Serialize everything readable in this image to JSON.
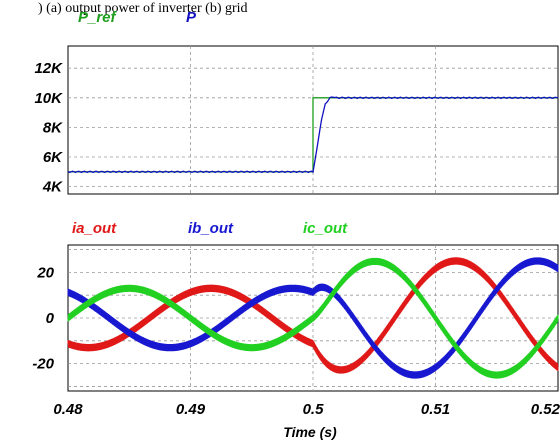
{
  "header_fragment": ") (a) output power of inverter (b) grid",
  "chart_data": [
    {
      "type": "line",
      "title": "",
      "xlabel": "",
      "ylabel": "",
      "xlim": [
        0.48,
        0.52
      ],
      "ylim": [
        3500,
        13500
      ],
      "y_ticks": [
        4000,
        6000,
        8000,
        10000,
        12000
      ],
      "y_tick_labels": [
        "4K",
        "6K",
        "8K",
        "10K",
        "12K"
      ],
      "grid": true,
      "legend_position": "top-left",
      "series": [
        {
          "name": "P_ref",
          "color": "#1e9e1e",
          "x": [
            0.48,
            0.5,
            0.5,
            0.52
          ],
          "y": [
            5000,
            5000,
            10000,
            10000
          ]
        },
        {
          "name": "P",
          "color": "#1010c0",
          "x": [
            0.48,
            0.5,
            0.5003,
            0.5007,
            0.501,
            0.5014,
            0.5018,
            0.502,
            0.503,
            0.52
          ],
          "y": [
            5000,
            5000,
            6500,
            8500,
            9600,
            10000,
            10050,
            10000,
            10000,
            10000
          ]
        }
      ]
    },
    {
      "type": "line",
      "title": "",
      "xlabel": "Time (s)",
      "ylabel": "",
      "xlim": [
        0.48,
        0.52
      ],
      "ylim": [
        -32,
        32
      ],
      "x_ticks": [
        0.48,
        0.49,
        0.5,
        0.51,
        0.52
      ],
      "x_tick_labels": [
        "0.48",
        "0.49",
        "0.5",
        "0.51",
        "0.52"
      ],
      "y_ticks": [
        -20,
        0,
        20
      ],
      "y_tick_labels": [
        "-20",
        "0",
        "20"
      ],
      "grid": true,
      "legend_position": "top-left",
      "frequency_hz": 50,
      "series": [
        {
          "name": "ia_out",
          "color": "#e01818",
          "amplitude_before": 13,
          "amplitude_after": 25,
          "phase_deg": -120
        },
        {
          "name": "ib_out",
          "color": "#1818d0",
          "amplitude_before": 13,
          "amplitude_after": 25,
          "phase_deg": 120
        },
        {
          "name": "ic_out",
          "color": "#22d022",
          "amplitude_before": 13,
          "amplitude_after": 25,
          "phase_deg": 0
        }
      ]
    }
  ]
}
